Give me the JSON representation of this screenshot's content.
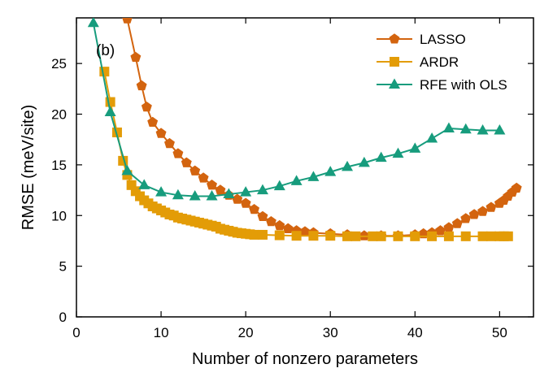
{
  "chart_data": {
    "type": "line",
    "title": "",
    "panel_label": "(b)",
    "xlabel": "Number of nonzero parameters",
    "ylabel": "RMSE (meV/site)",
    "xlim": [
      0,
      54
    ],
    "ylim": [
      0,
      29.5
    ],
    "xticks": [
      0,
      10,
      20,
      30,
      40,
      50
    ],
    "yticks": [
      0,
      5,
      10,
      15,
      20,
      25
    ],
    "grid": false,
    "legend_position": "top-right",
    "series": [
      {
        "name": "LASSO",
        "color": "#d3640f",
        "marker": "pentagon",
        "x": [
          6,
          7,
          7.7,
          8.3,
          9,
          10,
          11,
          12,
          13,
          14,
          15,
          16,
          17,
          18,
          19,
          20,
          21,
          22,
          23,
          24,
          25,
          26,
          27,
          28,
          30,
          32,
          34,
          36,
          38,
          40,
          41,
          42,
          43,
          44,
          45,
          46,
          47,
          48,
          49,
          50,
          50.5,
          51,
          51.5,
          52
        ],
        "y": [
          29.4,
          25.6,
          22.8,
          20.7,
          19.2,
          18.1,
          17.1,
          16.1,
          15.2,
          14.4,
          13.7,
          13.0,
          12.5,
          12.0,
          11.6,
          11.2,
          10.6,
          9.9,
          9.4,
          9.0,
          8.7,
          8.5,
          8.4,
          8.3,
          8.2,
          8.1,
          8.0,
          8.0,
          8.0,
          8.1,
          8.2,
          8.3,
          8.5,
          8.8,
          9.2,
          9.7,
          10.1,
          10.4,
          10.8,
          11.2,
          11.5,
          11.9,
          12.3,
          12.7
        ]
      },
      {
        "name": "ARDR",
        "color": "#e39c07",
        "marker": "square",
        "x": [
          3.3,
          4,
          4.8,
          5.5,
          6,
          6.5,
          7,
          7.5,
          8,
          8.5,
          9,
          9.5,
          10,
          10.5,
          11,
          11.5,
          12,
          12.5,
          13,
          13.5,
          14,
          14.5,
          15,
          15.5,
          16,
          16.5,
          17,
          17.5,
          18,
          18.5,
          19,
          19.5,
          20,
          20.5,
          21,
          22,
          24,
          26,
          28,
          30,
          32,
          33,
          35,
          36,
          38,
          40,
          42,
          44,
          46,
          48,
          49,
          50,
          50.5,
          51
        ],
        "y": [
          24.2,
          21.2,
          18.2,
          15.4,
          14.0,
          13.0,
          12.4,
          11.9,
          11.5,
          11.2,
          10.9,
          10.7,
          10.5,
          10.3,
          10.1,
          10.0,
          9.8,
          9.7,
          9.6,
          9.5,
          9.4,
          9.3,
          9.2,
          9.1,
          9.0,
          8.9,
          8.7,
          8.6,
          8.5,
          8.4,
          8.3,
          8.25,
          8.2,
          8.15,
          8.1,
          8.1,
          8.05,
          8.0,
          8.0,
          8.0,
          7.95,
          7.95,
          7.95,
          7.95,
          7.95,
          7.95,
          7.95,
          7.95,
          7.95,
          7.95,
          7.95,
          7.95,
          7.95,
          7.95
        ]
      },
      {
        "name": "RFE with OLS",
        "color": "#179c7d",
        "marker": "triangle",
        "x": [
          2,
          4,
          6,
          8,
          10,
          12,
          14,
          16,
          18,
          20,
          22,
          24,
          26,
          28,
          30,
          32,
          34,
          36,
          38,
          40,
          42,
          44,
          46,
          48,
          50
        ],
        "y": [
          29.0,
          20.2,
          14.4,
          13.0,
          12.3,
          12.0,
          11.9,
          11.9,
          12.1,
          12.3,
          12.5,
          12.9,
          13.4,
          13.8,
          14.3,
          14.8,
          15.2,
          15.7,
          16.1,
          16.6,
          17.6,
          18.6,
          18.5,
          18.4,
          18.4
        ]
      }
    ]
  }
}
